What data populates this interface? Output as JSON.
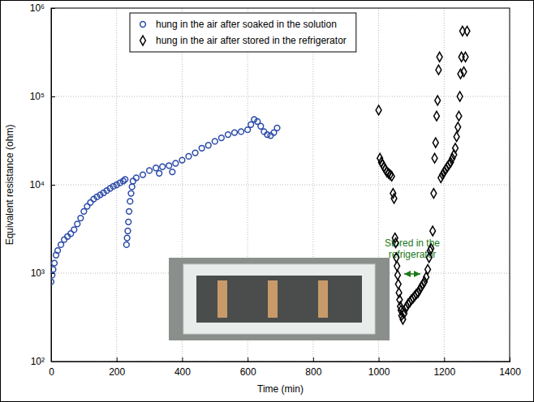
{
  "chart_data": {
    "type": "scatter",
    "x_label": "Time (min)",
    "y_label": "Equivalent resistance (ohm)",
    "annotation": "Stored in the refrigerator",
    "log": "y",
    "grid": true,
    "legend": "top",
    "xlim": [
      0,
      1400
    ],
    "xticks": [
      0,
      200,
      400,
      600,
      800,
      1000,
      1200,
      1400
    ],
    "ylim": [
      100,
      1000000
    ],
    "yticks": [
      {
        "value": 100,
        "label": "10²"
      },
      {
        "value": 1000,
        "label": "10³"
      },
      {
        "value": 10000,
        "label": "10⁴"
      },
      {
        "value": 100000,
        "label": "10⁵"
      },
      {
        "value": 1000000,
        "label": "10⁶"
      }
    ],
    "series": [
      {
        "name": "hung in the air after soaked in the solution",
        "color": "#2a4aa8",
        "marker": "circle",
        "x": [
          0,
          3,
          6,
          10,
          15,
          20,
          30,
          40,
          50,
          60,
          70,
          80,
          90,
          100,
          110,
          120,
          130,
          140,
          150,
          160,
          170,
          180,
          190,
          200,
          210,
          220,
          226,
          230,
          232,
          234,
          236,
          238,
          241,
          244,
          247,
          250,
          260,
          280,
          300,
          320,
          330,
          340,
          360,
          370,
          380,
          400,
          420,
          440,
          460,
          480,
          500,
          520,
          540,
          560,
          580,
          600,
          610,
          620,
          630,
          640,
          650,
          660,
          670,
          680,
          690
        ],
        "values": [
          800,
          950,
          1100,
          1300,
          1600,
          1800,
          2100,
          2400,
          2600,
          2800,
          3100,
          3600,
          4200,
          5000,
          5700,
          6300,
          6900,
          7300,
          7700,
          8100,
          8600,
          9100,
          9600,
          10000,
          10500,
          11000,
          11500,
          2100,
          2500,
          3000,
          3800,
          5000,
          6500,
          8000,
          9500,
          11000,
          12000,
          13000,
          14500,
          15500,
          13500,
          16000,
          16500,
          14000,
          17500,
          19000,
          21000,
          23000,
          26000,
          28000,
          31000,
          34000,
          37000,
          39000,
          40000,
          42000,
          48000,
          55000,
          52000,
          46000,
          40000,
          37000,
          36000,
          39000,
          44000
        ]
      },
      {
        "name": "hung in the air after stored in the refrigerator",
        "color": "#000000",
        "marker": "diamond",
        "x": [
          1000,
          1004,
          1008,
          1012,
          1016,
          1020,
          1025,
          1030,
          1035,
          1040,
          1044,
          1047,
          1050,
          1052,
          1054,
          1056,
          1058,
          1060,
          1062,
          1064,
          1066,
          1068,
          1070,
          1074,
          1078,
          1082,
          1086,
          1090,
          1095,
          1100,
          1105,
          1110,
          1115,
          1120,
          1125,
          1130,
          1135,
          1140,
          1145,
          1150,
          1154,
          1157,
          1160,
          1165,
          1168,
          1171,
          1174,
          1177,
          1180,
          1183,
          1186,
          1190,
          1195,
          1200,
          1205,
          1210,
          1215,
          1220,
          1225,
          1230,
          1234,
          1238,
          1242,
          1245,
          1248,
          1250,
          1253,
          1256,
          1260,
          1265,
          1270
        ],
        "values": [
          70000,
          20000,
          18000,
          17000,
          16000,
          15000,
          14000,
          13500,
          13000,
          12500,
          8000,
          7000,
          2500,
          2200,
          1500,
          1200,
          950,
          750,
          600,
          500,
          420,
          380,
          330,
          300,
          350,
          400,
          420,
          450,
          470,
          500,
          520,
          550,
          580,
          600,
          650,
          700,
          750,
          800,
          900,
          1100,
          1500,
          1800,
          1900,
          3000,
          8000,
          20000,
          30000,
          60000,
          90000,
          200000,
          280000,
          12000,
          13000,
          14000,
          15000,
          16000,
          17000,
          18000,
          20000,
          22000,
          26000,
          35000,
          45000,
          60000,
          100000,
          180000,
          280000,
          550000,
          190000,
          280000,
          550000
        ]
      }
    ]
  }
}
